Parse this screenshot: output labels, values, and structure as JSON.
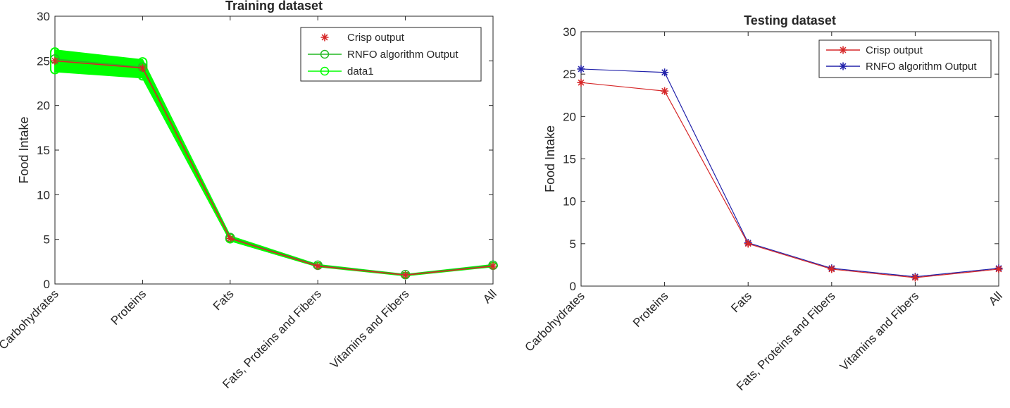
{
  "chart_data": [
    {
      "type": "line",
      "title": "Training dataset",
      "xlabel": "",
      "ylabel": "Food Intake",
      "categories": [
        "Carbohydrates",
        "Proteins",
        "Fats",
        "Fats, Proteins and Fibers",
        "Vitamins and Fibers",
        "All"
      ],
      "ylim": [
        0,
        30
      ],
      "yticks": [
        0,
        5,
        10,
        15,
        20,
        25,
        30
      ],
      "grid": false,
      "legend_position": "top-right",
      "series": [
        {
          "name": "Crisp output",
          "color": "#d62728",
          "marker": "star",
          "values": [
            25.0,
            24.2,
            5.1,
            2.0,
            1.0,
            2.0
          ]
        },
        {
          "name": "RNFO algorithm Output",
          "color": "#22b922",
          "marker": "circle",
          "values": [
            25.2,
            24.3,
            5.2,
            2.1,
            1.05,
            2.1
          ]
        },
        {
          "name": "data1",
          "color": "#00ff00",
          "marker": "circle",
          "values": [
            25.0,
            24.1,
            5.1,
            2.05,
            1.0,
            2.05
          ],
          "band": [
            2.4,
            2.0,
            0.5,
            0.2,
            0.12,
            0.2
          ]
        }
      ]
    },
    {
      "type": "line",
      "title": "Testing dataset",
      "xlabel": "",
      "ylabel": "Food Intake",
      "categories": [
        "Carbohydrates",
        "Proteins",
        "Fats",
        "Fats, Proteins and Fibers",
        "Vitamins and Fibers",
        "All"
      ],
      "ylim": [
        0,
        30
      ],
      "yticks": [
        0,
        5,
        10,
        15,
        20,
        25,
        30
      ],
      "grid": false,
      "legend_position": "top-right",
      "series": [
        {
          "name": "Crisp output",
          "color": "#d62728",
          "marker": "star",
          "values": [
            24.0,
            23.0,
            5.0,
            2.0,
            1.0,
            2.0
          ]
        },
        {
          "name": "RNFO algorithm Output",
          "color": "#2222aa",
          "marker": "star",
          "values": [
            25.6,
            25.2,
            5.1,
            2.1,
            1.1,
            2.1
          ]
        }
      ]
    }
  ]
}
